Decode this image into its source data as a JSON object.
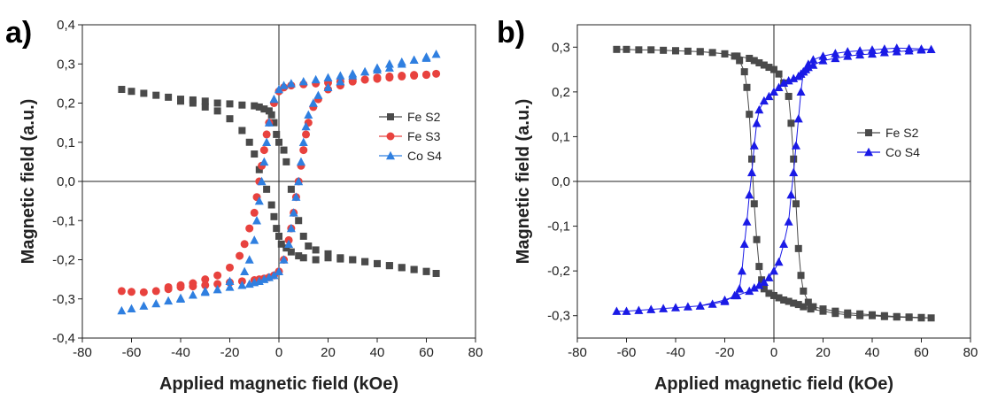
{
  "chart_data": [
    {
      "type": "scatter",
      "panel_label": "a)",
      "xlabel": "Applied magnetic field (kOe)",
      "ylabel": "Magnetic field (a.u.)",
      "xlim": [
        -80,
        80
      ],
      "ylim": [
        -0.4,
        0.4
      ],
      "xticks": [
        "-80",
        "-60",
        "-40",
        "-20",
        "0",
        "20",
        "40",
        "60",
        "80"
      ],
      "yticks": [
        "-0,4",
        "-0,3",
        "-0,2",
        "-0,1",
        "0,0",
        "0,1",
        "0,2",
        "0,3",
        "0,4"
      ],
      "legend_position": "right",
      "series": [
        {
          "name": "Fe S2",
          "color": "#4a4a4a",
          "marker": "square",
          "x": [
            -64,
            -60,
            -55,
            -50,
            -45,
            -40,
            -35,
            -30,
            -25,
            -20,
            -15,
            -10,
            -8,
            -6,
            -4,
            -3,
            -2,
            -1,
            0,
            2,
            3,
            5,
            8,
            10,
            12,
            15,
            20,
            25,
            30,
            35,
            40,
            45,
            50,
            55,
            60,
            64,
            60,
            55,
            50,
            45,
            40,
            35,
            30,
            25,
            20,
            15,
            10,
            8,
            5,
            3,
            1,
            0,
            -1,
            -2,
            -3,
            -5,
            -8,
            -10,
            -12,
            -15,
            -20,
            -25,
            -30,
            -35,
            -40
          ],
          "y": [
            0.235,
            0.23,
            0.225,
            0.22,
            0.215,
            0.21,
            0.208,
            0.205,
            0.2,
            0.198,
            0.195,
            0.193,
            0.19,
            0.185,
            0.18,
            0.17,
            0.15,
            0.12,
            0.1,
            0.08,
            0.05,
            -0.02,
            -0.1,
            -0.14,
            -0.165,
            -0.175,
            -0.185,
            -0.195,
            -0.2,
            -0.205,
            -0.21,
            -0.215,
            -0.22,
            -0.225,
            -0.23,
            -0.235,
            -0.23,
            -0.225,
            -0.22,
            -0.215,
            -0.21,
            -0.205,
            -0.2,
            -0.198,
            -0.195,
            -0.2,
            -0.195,
            -0.19,
            -0.18,
            -0.17,
            -0.16,
            -0.14,
            -0.12,
            -0.09,
            -0.06,
            -0.02,
            0.03,
            0.07,
            0.1,
            0.13,
            0.16,
            0.18,
            0.19,
            0.2,
            0.205
          ]
        },
        {
          "name": "Fe S3",
          "color": "#e8423e",
          "marker": "circle",
          "x": [
            -64,
            -60,
            -55,
            -50,
            -45,
            -40,
            -35,
            -30,
            -25,
            -20,
            -15,
            -10,
            -8,
            -6,
            -4,
            -2,
            0,
            2,
            4,
            5,
            6,
            7,
            8,
            9,
            10,
            11,
            12,
            14,
            16,
            20,
            25,
            30,
            35,
            40,
            45,
            50,
            55,
            60,
            64,
            60,
            55,
            50,
            45,
            40,
            35,
            30,
            25,
            20,
            15,
            10,
            5,
            2,
            0,
            -2,
            -4,
            -5,
            -6,
            -7,
            -8,
            -9,
            -10,
            -12,
            -14,
            -16,
            -20,
            -25,
            -30,
            -35,
            -40,
            -45
          ],
          "y": [
            -0.28,
            -0.282,
            -0.283,
            -0.28,
            -0.275,
            -0.27,
            -0.268,
            -0.265,
            -0.262,
            -0.258,
            -0.255,
            -0.252,
            -0.25,
            -0.248,
            -0.245,
            -0.24,
            -0.23,
            -0.2,
            -0.15,
            -0.12,
            -0.08,
            -0.04,
            0.0,
            0.04,
            0.08,
            0.12,
            0.15,
            0.19,
            0.21,
            0.235,
            0.245,
            0.255,
            0.26,
            0.265,
            0.268,
            0.27,
            0.272,
            0.273,
            0.275,
            0.272,
            0.27,
            0.268,
            0.265,
            0.262,
            0.26,
            0.257,
            0.255,
            0.252,
            0.25,
            0.248,
            0.245,
            0.24,
            0.23,
            0.2,
            0.15,
            0.12,
            0.08,
            0.04,
            0.0,
            -0.04,
            -0.08,
            -0.12,
            -0.16,
            -0.19,
            -0.22,
            -0.24,
            -0.25,
            -0.26,
            -0.265,
            -0.27
          ]
        },
        {
          "name": "Co S4",
          "color": "#2f7fe0",
          "marker": "triangle",
          "x": [
            -64,
            -60,
            -55,
            -50,
            -45,
            -40,
            -35,
            -30,
            -25,
            -20,
            -15,
            -12,
            -10,
            -8,
            -6,
            -4,
            -2,
            0,
            2,
            4,
            5,
            6,
            7,
            8,
            9,
            10,
            11,
            12,
            14,
            16,
            20,
            25,
            30,
            35,
            40,
            45,
            50,
            55,
            60,
            64,
            60,
            55,
            50,
            45,
            40,
            35,
            30,
            25,
            20,
            15,
            10,
            5,
            2,
            0,
            -2,
            -4,
            -5,
            -6,
            -7,
            -8,
            -9,
            -10,
            -12,
            -14,
            -20,
            -30,
            -40
          ],
          "y": [
            -0.33,
            -0.325,
            -0.318,
            -0.312,
            -0.305,
            -0.298,
            -0.29,
            -0.283,
            -0.276,
            -0.27,
            -0.265,
            -0.262,
            -0.258,
            -0.255,
            -0.25,
            -0.245,
            -0.24,
            -0.23,
            -0.2,
            -0.16,
            -0.12,
            -0.08,
            -0.04,
            0.0,
            0.05,
            0.1,
            0.14,
            0.17,
            0.2,
            0.22,
            0.24,
            0.255,
            0.27,
            0.28,
            0.29,
            0.3,
            0.305,
            0.31,
            0.315,
            0.325,
            0.318,
            0.31,
            0.3,
            0.29,
            0.285,
            0.28,
            0.275,
            0.27,
            0.265,
            0.26,
            0.255,
            0.25,
            0.245,
            0.235,
            0.21,
            0.15,
            0.1,
            0.05,
            0.0,
            -0.05,
            -0.1,
            -0.15,
            -0.2,
            -0.23,
            -0.255,
            -0.28,
            -0.3
          ]
        }
      ]
    },
    {
      "type": "scatter",
      "panel_label": "b)",
      "xlabel": "Applied magnetic field (kOe)",
      "ylabel": "Magnetic field (a.u.)",
      "xlim": [
        -80,
        80
      ],
      "ylim": [
        -0.35,
        0.35
      ],
      "xticks": [
        "-80",
        "-60",
        "-40",
        "-20",
        "0",
        "20",
        "40",
        "60",
        "80"
      ],
      "yticks": [
        "-0,3",
        "-0,2",
        "-0,1",
        "0,0",
        "0,1",
        "0,2",
        "0,3"
      ],
      "legend_position": "right",
      "series": [
        {
          "name": "Fe S2",
          "color": "#4a4a4a",
          "marker": "square",
          "x": [
            -64,
            -60,
            -55,
            -50,
            -45,
            -40,
            -35,
            -30,
            -25,
            -20,
            -16,
            -14,
            -12,
            -11,
            -10,
            -9,
            -8,
            -7,
            -6,
            -5,
            -4,
            -2,
            0,
            2,
            4,
            6,
            8,
            10,
            12,
            15,
            20,
            25,
            30,
            35,
            40,
            45,
            50,
            55,
            60,
            64,
            60,
            55,
            50,
            45,
            40,
            35,
            30,
            25,
            20,
            16,
            14,
            12,
            11,
            10,
            9,
            8,
            7,
            6,
            4,
            2,
            0,
            -2,
            -4,
            -6,
            -8,
            -10,
            -15,
            -20,
            -30,
            -40
          ],
          "y": [
            0.295,
            0.295,
            0.294,
            0.294,
            0.293,
            0.292,
            0.291,
            0.29,
            0.288,
            0.285,
            0.28,
            0.27,
            0.245,
            0.21,
            0.15,
            0.05,
            -0.05,
            -0.13,
            -0.19,
            -0.22,
            -0.24,
            -0.25,
            -0.255,
            -0.26,
            -0.265,
            -0.268,
            -0.272,
            -0.275,
            -0.28,
            -0.285,
            -0.29,
            -0.295,
            -0.298,
            -0.3,
            -0.3,
            -0.302,
            -0.303,
            -0.304,
            -0.305,
            -0.305,
            -0.304,
            -0.303,
            -0.302,
            -0.3,
            -0.298,
            -0.296,
            -0.294,
            -0.29,
            -0.285,
            -0.28,
            -0.27,
            -0.245,
            -0.21,
            -0.15,
            -0.05,
            0.05,
            0.13,
            0.19,
            0.22,
            0.24,
            0.25,
            0.255,
            0.26,
            0.265,
            0.27,
            0.275,
            0.28,
            0.285,
            0.29,
            0.292
          ]
        },
        {
          "name": "Co S4",
          "color": "#1a1ae6",
          "marker": "triangle",
          "x": [
            -64,
            -60,
            -55,
            -50,
            -45,
            -40,
            -35,
            -30,
            -25,
            -20,
            -16,
            -14,
            -13,
            -12,
            -11,
            -10,
            -9,
            -8,
            -7,
            -6,
            -4,
            -2,
            0,
            2,
            4,
            6,
            8,
            10,
            11,
            12,
            13,
            14,
            16,
            20,
            25,
            30,
            35,
            40,
            45,
            50,
            55,
            60,
            64,
            60,
            55,
            50,
            45,
            40,
            35,
            30,
            25,
            20,
            16,
            14,
            12,
            11,
            10,
            9,
            8,
            7,
            6,
            4,
            2,
            0,
            -2,
            -4,
            -6,
            -8,
            -10,
            -15,
            -20,
            -30
          ],
          "y": [
            -0.29,
            -0.29,
            -0.288,
            -0.286,
            -0.284,
            -0.282,
            -0.28,
            -0.278,
            -0.274,
            -0.268,
            -0.255,
            -0.24,
            -0.2,
            -0.14,
            -0.09,
            -0.03,
            0.02,
            0.08,
            0.13,
            0.16,
            0.18,
            0.19,
            0.2,
            0.21,
            0.22,
            0.225,
            0.23,
            0.235,
            0.24,
            0.245,
            0.25,
            0.255,
            0.26,
            0.27,
            0.275,
            0.28,
            0.283,
            0.285,
            0.288,
            0.29,
            0.292,
            0.294,
            0.295,
            0.296,
            0.297,
            0.298,
            0.296,
            0.294,
            0.292,
            0.29,
            0.286,
            0.28,
            0.272,
            0.262,
            0.245,
            0.2,
            0.14,
            0.08,
            0.02,
            -0.03,
            -0.09,
            -0.14,
            -0.18,
            -0.2,
            -0.215,
            -0.225,
            -0.232,
            -0.238,
            -0.245,
            -0.255,
            -0.265,
            -0.278
          ]
        }
      ]
    }
  ]
}
